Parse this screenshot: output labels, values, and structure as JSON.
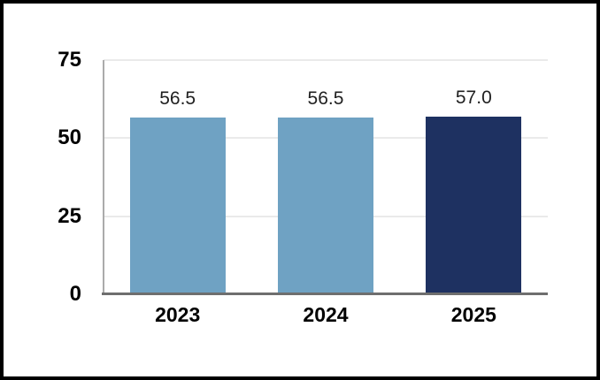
{
  "chart_data": {
    "type": "bar",
    "title": "",
    "xlabel": "",
    "ylabel": "",
    "categories": [
      "2023",
      "2024",
      "2025"
    ],
    "values": [
      56.5,
      56.5,
      57.0
    ],
    "value_labels": [
      "56.5",
      "56.5",
      "57.0"
    ],
    "bar_colors": [
      "#6FA2C3",
      "#6FA2C3",
      "#1E3161"
    ],
    "ylim": [
      0,
      75
    ],
    "yticks": [
      0,
      25,
      50,
      75
    ],
    "ytick_labels": [
      "0",
      "25",
      "50",
      "75"
    ],
    "grid": true,
    "legend": false,
    "colors": {
      "bar_light_blue": "#6FA2C3",
      "bar_navy": "#1E3161",
      "gridline": "#EAEAEA",
      "y_axis_line": "#ABABAB",
      "baseline": "#6E6E6E",
      "tick_text": "#000000",
      "data_label_text": "#1F1F1F",
      "frame_border": "#000000",
      "background": "#FFFFFF"
    }
  }
}
